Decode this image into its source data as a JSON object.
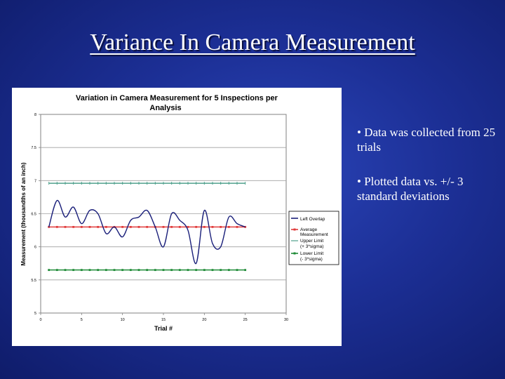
{
  "slide": {
    "title": "Variance In Camera Measurement",
    "bullets": [
      "• Data was collected from 25 trials",
      "• Plotted data vs. +/- 3 standard deviations"
    ]
  },
  "chart_data": {
    "type": "line",
    "title_lines": [
      "Variation in Camera Measurement for 5 Inspections per",
      "Analysis"
    ],
    "xlabel": "Trial #",
    "ylabel": "Measurement (thousandths of an inch)",
    "xlim": [
      0,
      30
    ],
    "ylim": [
      5,
      8
    ],
    "x_ticks": [
      "0",
      "5",
      "10",
      "15",
      "20",
      "25",
      "30"
    ],
    "y_ticks": [
      "8",
      "7.5",
      "7",
      "6.5",
      "6",
      "5.5",
      "5"
    ],
    "grid": "horizontal",
    "legend_position": "right",
    "series": [
      {
        "name": "Left Overlap",
        "color": "#1a1f7a",
        "smooth": true,
        "marker": "none",
        "x": [
          1,
          2,
          3,
          4,
          5,
          6,
          7,
          8,
          9,
          10,
          11,
          12,
          13,
          14,
          15,
          16,
          17,
          18,
          19,
          20,
          21,
          22,
          23,
          24,
          25
        ],
        "y": [
          6.3,
          6.7,
          6.45,
          6.6,
          6.35,
          6.55,
          6.5,
          6.2,
          6.3,
          6.15,
          6.4,
          6.45,
          6.55,
          6.3,
          6.0,
          6.5,
          6.4,
          6.25,
          5.75,
          6.55,
          6.05,
          6.0,
          6.45,
          6.35,
          6.3
        ]
      },
      {
        "name": "Average Measurement",
        "color": "#e03b3b",
        "marker": "square",
        "x": [
          1,
          2,
          3,
          4,
          5,
          6,
          7,
          8,
          9,
          10,
          11,
          12,
          13,
          14,
          15,
          16,
          17,
          18,
          19,
          20,
          21,
          22,
          23,
          24,
          25
        ],
        "y": [
          6.3,
          6.3,
          6.3,
          6.3,
          6.3,
          6.3,
          6.3,
          6.3,
          6.3,
          6.3,
          6.3,
          6.3,
          6.3,
          6.3,
          6.3,
          6.3,
          6.3,
          6.3,
          6.3,
          6.3,
          6.3,
          6.3,
          6.3,
          6.3,
          6.3
        ]
      },
      {
        "name": "Upper Limit (+ 3*sigma)",
        "legend_lines": [
          "Upper Limit",
          "(+ 3*sigma)"
        ],
        "color": "#4fa08c",
        "marker": "tick",
        "x": [
          1,
          2,
          3,
          4,
          5,
          6,
          7,
          8,
          9,
          10,
          11,
          12,
          13,
          14,
          15,
          16,
          17,
          18,
          19,
          20,
          21,
          22,
          23,
          24,
          25
        ],
        "y": [
          6.96,
          6.96,
          6.96,
          6.96,
          6.96,
          6.96,
          6.96,
          6.96,
          6.96,
          6.96,
          6.96,
          6.96,
          6.96,
          6.96,
          6.96,
          6.96,
          6.96,
          6.96,
          6.96,
          6.96,
          6.96,
          6.96,
          6.96,
          6.96,
          6.96
        ]
      },
      {
        "name": "Lower Limit (- 3*sigma)",
        "legend_lines": [
          "Lower Limit",
          "(- 3*sigma)"
        ],
        "color": "#1e8a36",
        "marker": "square",
        "x": [
          1,
          2,
          3,
          4,
          5,
          6,
          7,
          8,
          9,
          10,
          11,
          12,
          13,
          14,
          15,
          16,
          17,
          18,
          19,
          20,
          21,
          22,
          23,
          24,
          25
        ],
        "y": [
          5.65,
          5.65,
          5.65,
          5.65,
          5.65,
          5.65,
          5.65,
          5.65,
          5.65,
          5.65,
          5.65,
          5.65,
          5.65,
          5.65,
          5.65,
          5.65,
          5.65,
          5.65,
          5.65,
          5.65,
          5.65,
          5.65,
          5.65,
          5.65,
          5.65
        ]
      }
    ],
    "legend_labels": {
      "left_overlap": "Left Overlap",
      "average": [
        "Average",
        "Measurement"
      ],
      "upper": [
        "Upper Limit",
        "(+ 3*sigma)"
      ],
      "lower": [
        "Lower Limit",
        "(- 3*sigma)"
      ]
    }
  }
}
